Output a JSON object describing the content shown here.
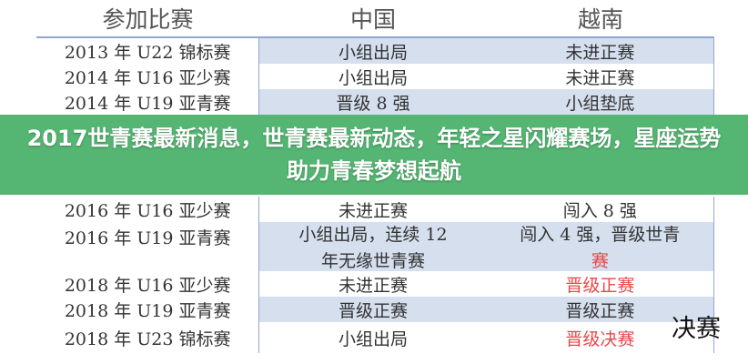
{
  "headers": [
    "参加比赛",
    "中国",
    "越南"
  ],
  "rows": [
    {
      "event": "2013 年 U22 锦标赛",
      "china": "小组出局",
      "vietnam": "未进正赛"
    },
    {
      "event": "2014 年 U16 亚少赛",
      "china": "小组出局",
      "vietnam": "未进正赛"
    },
    {
      "event": "2014 年 U19 亚青赛",
      "china": "晋级 8 强",
      "vietnam": "小组垫底"
    },
    {
      "event": "2016 年 U16 亚少赛",
      "china": "未进正赛",
      "vietnam": "闯入 8 强"
    },
    {
      "event": "2016 年 U19 亚青赛",
      "china": "小组出局，连续 12",
      "china2": "年无缘世青赛",
      "vietnam": "闯入 4 强，晋级世青",
      "vietnam2": "赛"
    },
    {
      "event": "2018 年 U16 亚少赛",
      "china": "未进正赛",
      "vietnam": "晋级正赛"
    },
    {
      "event": "2018 年 U19 亚青赛",
      "china": "晋级正赛",
      "vietnam": "晋级正赛"
    },
    {
      "event": "2018 年 U23 锦标赛",
      "china": "小组出局",
      "vietnam": "晋级决赛"
    }
  ],
  "overlay_text": "决赛",
  "banner": "2017世青赛最新消息，世青赛最新动态，年轻之星闪耀赛场，星座运势助力青春梦想起航",
  "colors": {
    "banner": "#4cb26c",
    "highlight": "#e8474b",
    "row_band": "#d5dfee"
  }
}
